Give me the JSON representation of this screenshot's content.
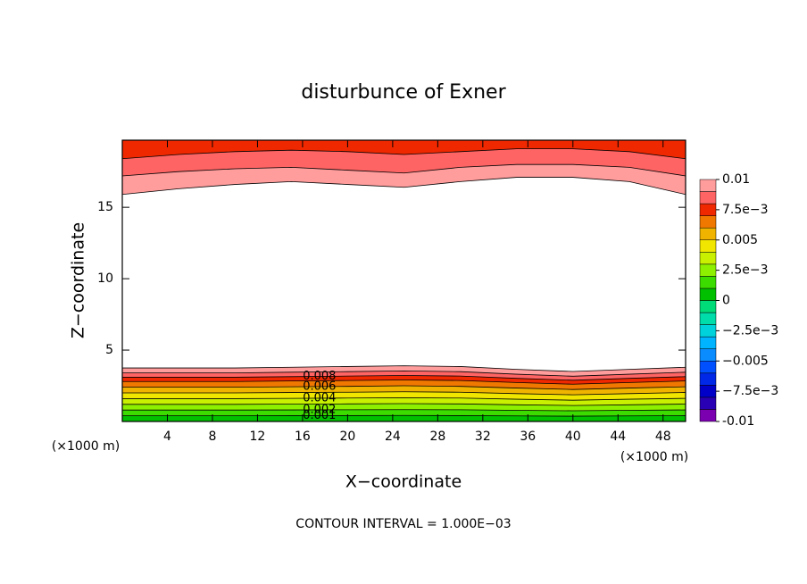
{
  "chart_data": {
    "type": "contour",
    "title": "disturbunce of Exner",
    "x_label": "X−coordinate",
    "y_label": "Z−coordinate",
    "x_unit": "(×1000 m)",
    "footer": "CONTOUR INTERVAL = 1.000E−03",
    "xlim": [
      0,
      50
    ],
    "ylim": [
      0,
      19.7
    ],
    "xticks": [
      4,
      8,
      12,
      16,
      20,
      24,
      28,
      32,
      36,
      40,
      44,
      48
    ],
    "yticks": [
      5,
      10,
      15
    ],
    "x": [
      0,
      5,
      10,
      15,
      20,
      25,
      30,
      35,
      40,
      45,
      50
    ],
    "lower_contours": [
      {
        "level": 0.001,
        "labeled": true,
        "y": [
          0.4,
          0.4,
          0.4,
          0.41,
          0.41,
          0.42,
          0.41,
          0.39,
          0.37,
          0.39,
          0.41
        ]
      },
      {
        "level": 0.002,
        "labeled": true,
        "y": [
          0.8,
          0.8,
          0.8,
          0.81,
          0.82,
          0.83,
          0.82,
          0.78,
          0.75,
          0.78,
          0.81
        ]
      },
      {
        "level": 0.003,
        "labeled": false,
        "y": [
          1.2,
          1.2,
          1.2,
          1.22,
          1.23,
          1.25,
          1.23,
          1.17,
          1.12,
          1.17,
          1.22
        ]
      },
      {
        "level": 0.004,
        "labeled": true,
        "y": [
          1.6,
          1.6,
          1.6,
          1.62,
          1.64,
          1.66,
          1.64,
          1.56,
          1.49,
          1.56,
          1.62
        ]
      },
      {
        "level": 0.005,
        "labeled": false,
        "y": [
          2,
          2,
          2,
          2.03,
          2.05,
          2.08,
          2.05,
          1.95,
          1.87,
          1.95,
          2.03
        ]
      },
      {
        "level": 0.006,
        "labeled": true,
        "y": [
          2.4,
          2.4,
          2.4,
          2.43,
          2.46,
          2.5,
          2.46,
          2.34,
          2.24,
          2.34,
          2.43
        ]
      },
      {
        "level": 0.007,
        "labeled": false,
        "y": [
          2.8,
          2.8,
          2.8,
          2.84,
          2.87,
          2.91,
          2.87,
          2.73,
          2.61,
          2.73,
          2.84
        ]
      },
      {
        "level": 0.008,
        "labeled": true,
        "y": [
          3.1,
          3.1,
          3.1,
          3.14,
          3.18,
          3.22,
          3.18,
          3.02,
          2.89,
          3.02,
          3.14
        ]
      },
      {
        "level": 0.009,
        "labeled": false,
        "y": [
          3.4,
          3.4,
          3.4,
          3.45,
          3.49,
          3.54,
          3.49,
          3.31,
          3.17,
          3.31,
          3.45
        ]
      },
      {
        "level": 0.01,
        "labeled": false,
        "y": [
          3.75,
          3.75,
          3.75,
          3.8,
          3.85,
          3.9,
          3.85,
          3.65,
          3.5,
          3.65,
          3.8
        ]
      }
    ],
    "upper_contours": [
      {
        "level": 0.01,
        "labeled": false,
        "y": [
          15.9,
          16.3,
          16.6,
          16.8,
          16.6,
          16.4,
          16.8,
          17.1,
          17.1,
          16.8,
          15.9
        ]
      },
      {
        "level": 0.009,
        "labeled": false,
        "y": [
          17.2,
          17.5,
          17.7,
          17.8,
          17.6,
          17.4,
          17.8,
          18.0,
          18.0,
          17.8,
          17.2
        ]
      },
      {
        "level": 0.008,
        "labeled": false,
        "y": [
          18.4,
          18.7,
          18.9,
          19.0,
          18.9,
          18.7,
          18.9,
          19.1,
          19.1,
          18.9,
          18.4
        ]
      }
    ],
    "colorbar": {
      "clim": [
        -0.01,
        0.01
      ],
      "colors": [
        "#7a00b0",
        "#2a00b4",
        "#0000c8",
        "#0028e6",
        "#0050ff",
        "#0a8cff",
        "#00b4ff",
        "#00d2dc",
        "#00dcaa",
        "#00dc78",
        "#00c000",
        "#3cdc00",
        "#8cf000",
        "#c8f000",
        "#f0e600",
        "#f0b400",
        "#f07800",
        "#f02800",
        "#ff6464",
        "#ff9c9c"
      ],
      "ticks": [
        -0.01,
        {
          "value": -0.0075,
          "label": "−7.5e−3"
        },
        {
          "value": -0.005,
          "label": "−0.005"
        },
        {
          "value": -0.0025,
          "label": "−2.5e−3"
        },
        0,
        {
          "value": 0.0025,
          "label": "2.5e−3"
        },
        0.005,
        {
          "value": 0.0075,
          "label": "7.5e−3"
        },
        0.01
      ]
    }
  }
}
